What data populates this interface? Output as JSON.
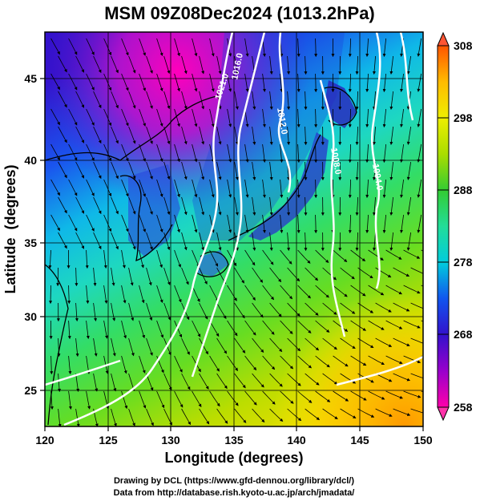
{
  "title": "MSM 09Z08Dec2024 (1013.2hPa)",
  "x_axis": {
    "label": "Longitude (degrees)",
    "range": [
      120,
      150
    ],
    "ticks": [
      "120",
      "125",
      "130",
      "135",
      "140",
      "145",
      "150"
    ]
  },
  "y_axis": {
    "label": "Latitude  (degrees)",
    "range": [
      22.4,
      47.6
    ],
    "ticks": [
      "25",
      "30",
      "35",
      "40",
      "45"
    ]
  },
  "colorbar": {
    "range": [
      258,
      308
    ],
    "ticks": [
      "258",
      "268",
      "278",
      "288",
      "298",
      "308"
    ],
    "colors": [
      "#ff00aa",
      "#9900cc",
      "#3311cc",
      "#1155ee",
      "#00ccdd",
      "#22dd99",
      "#33cc33",
      "#aadd00",
      "#eeee00",
      "#ffbb00",
      "#ff5500"
    ]
  },
  "isobars": [
    {
      "label": "1021.0"
    },
    {
      "label": "1016.0"
    },
    {
      "label": "1012.0"
    },
    {
      "label": "1008.0"
    },
    {
      "label": "1004.0"
    }
  ],
  "credits": {
    "line1": "Drawing by DCL (https://www.gfd-dennou.org/library/dcl/)",
    "line2": "Data from http://database.rish.kyoto-u.ac.jp/arch/jmadata/"
  }
}
